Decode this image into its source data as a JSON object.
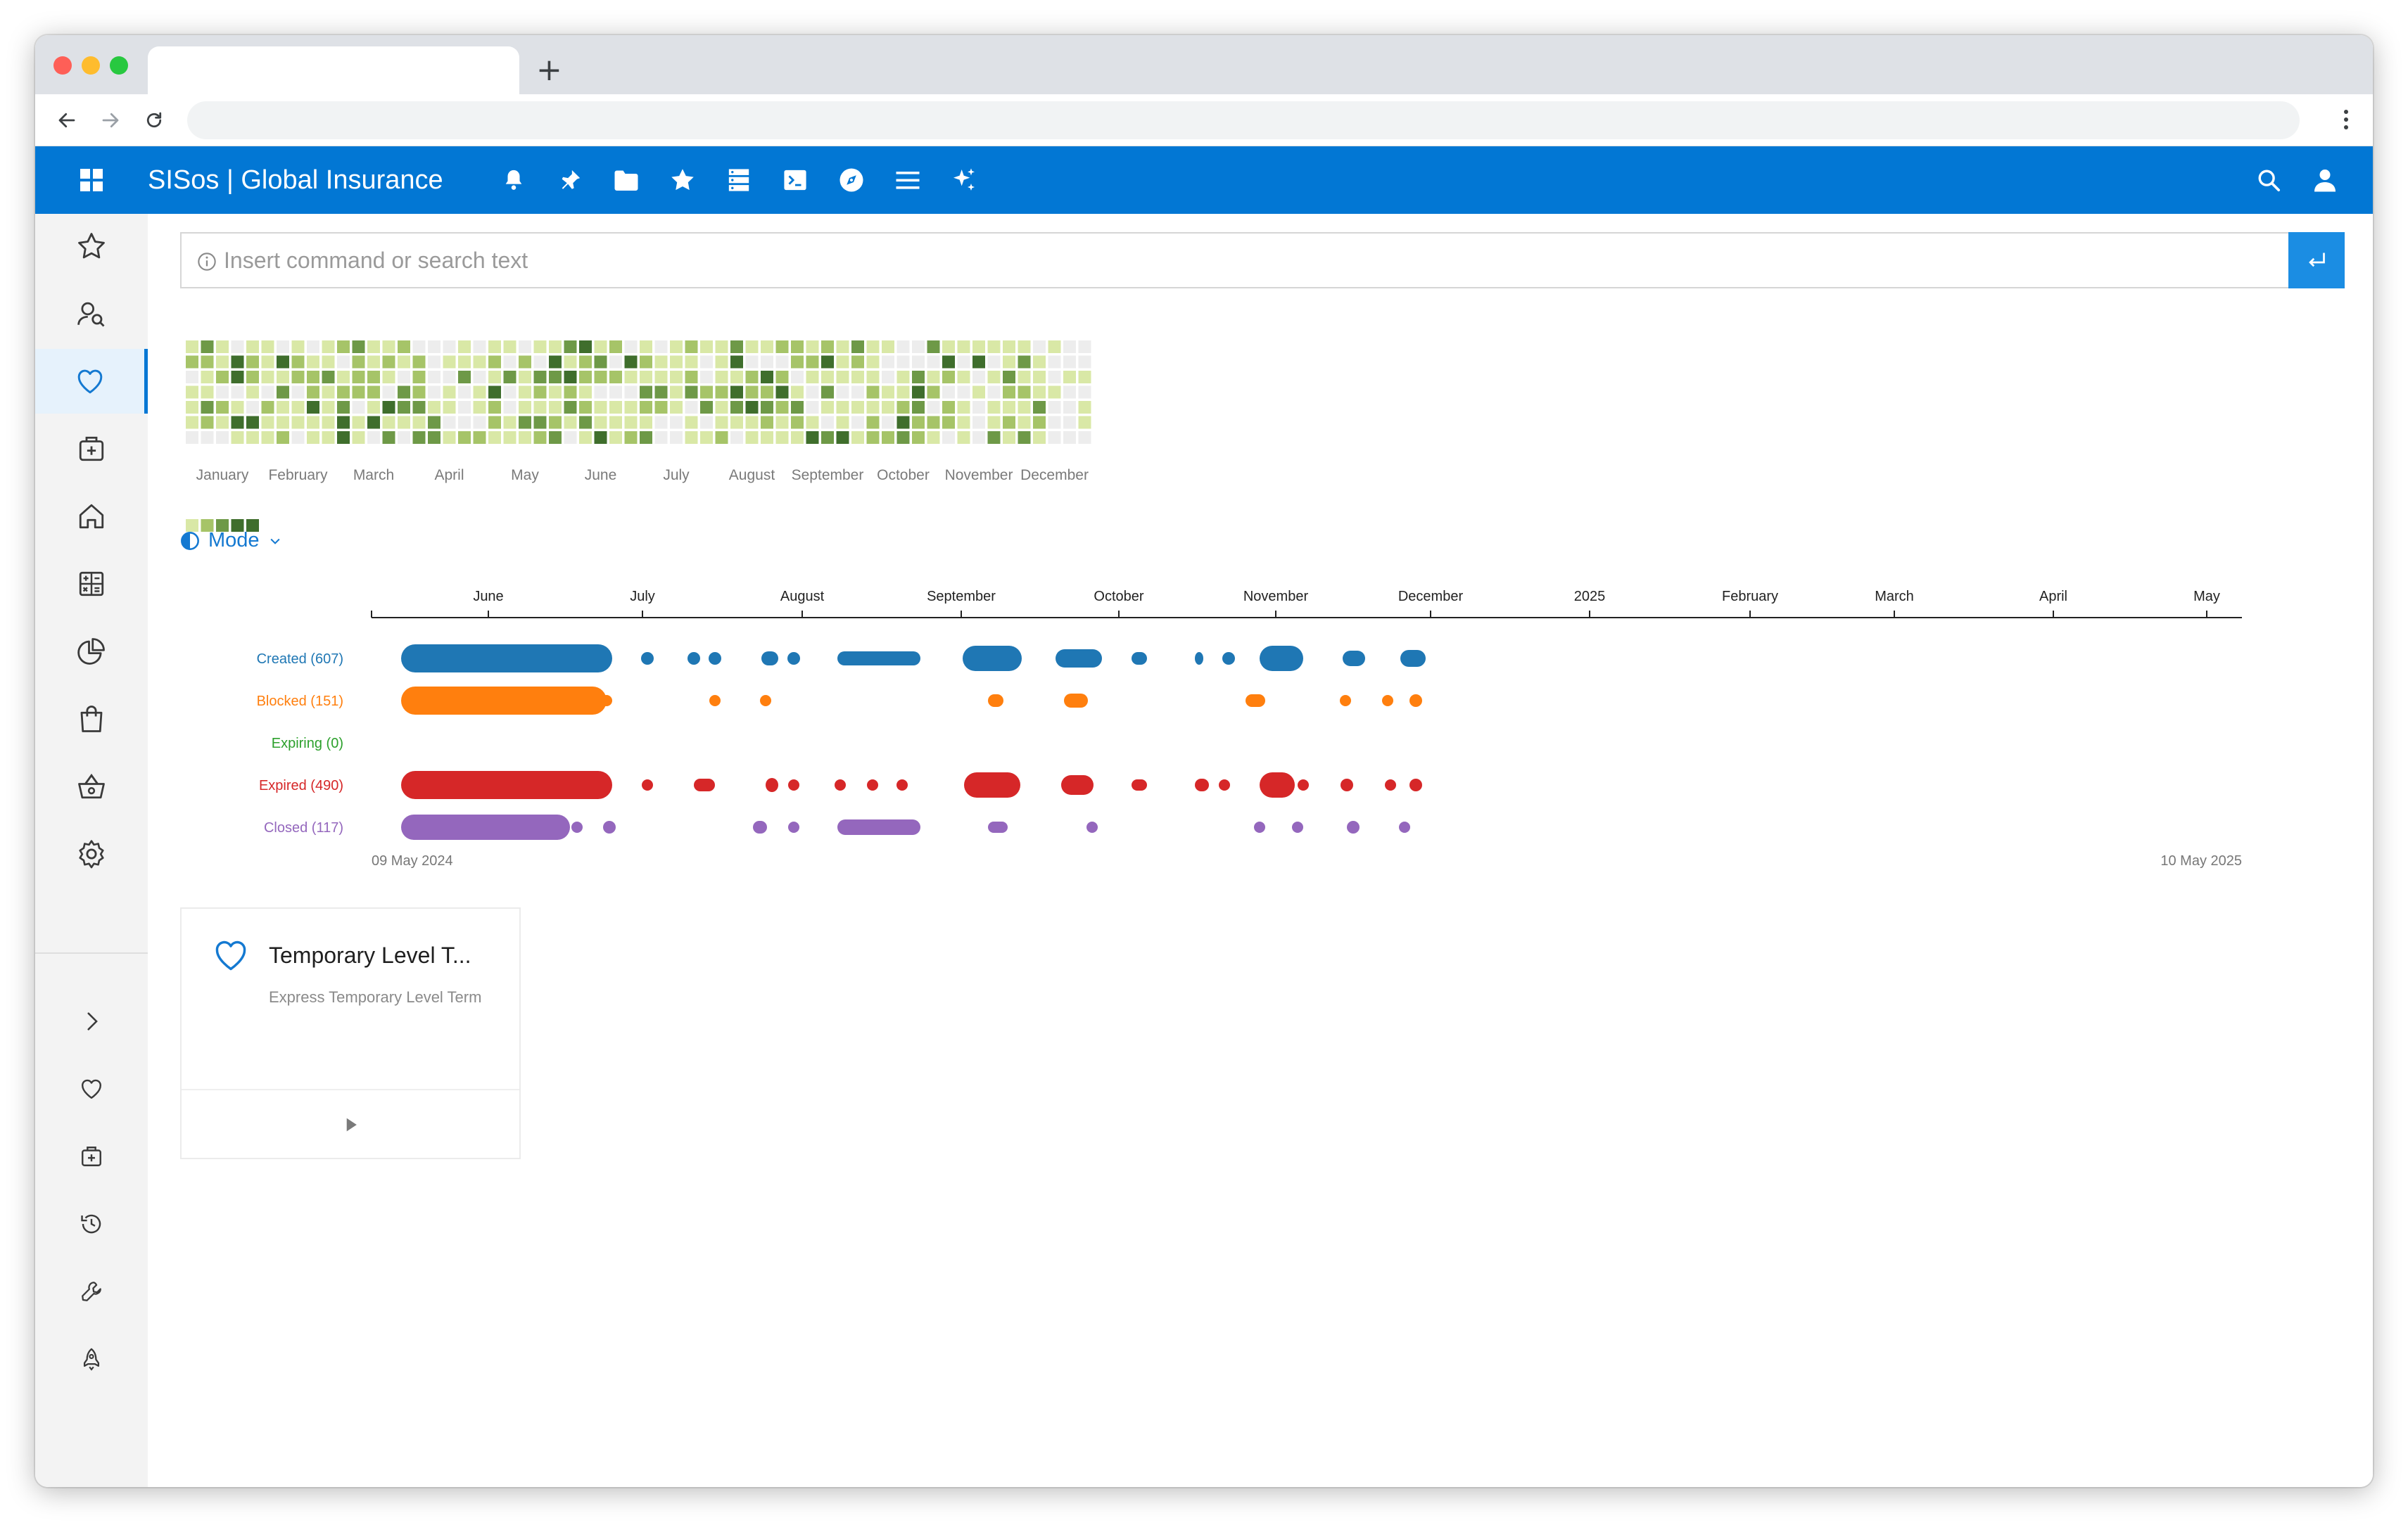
{
  "browser": {
    "tab_title": "",
    "url": "",
    "new_tab_symbol": "+"
  },
  "appbar": {
    "title": "SISos | Global Insurance",
    "icons": [
      "apps-grid-icon",
      "bell-icon",
      "pin-icon",
      "folder-icon",
      "star-icon",
      "database-icon",
      "terminal-icon",
      "compass-icon",
      "menu-list-icon",
      "sparkle-icon",
      "search-icon",
      "user-icon"
    ]
  },
  "sidebar": {
    "top_items": [
      "favorites",
      "contacts",
      "health",
      "medical-kit",
      "home",
      "calculator",
      "reports",
      "shopping",
      "basket",
      "settings"
    ],
    "active": "health",
    "bottom_items": [
      "expand",
      "health",
      "medical-kit",
      "history",
      "tools",
      "rocket"
    ]
  },
  "search": {
    "placeholder": "Insert command or search text"
  },
  "heatmap": {
    "months": [
      "January",
      "February",
      "March",
      "April",
      "May",
      "June",
      "July",
      "August",
      "September",
      "October",
      "November",
      "December"
    ],
    "levels": [
      0,
      1,
      2,
      3,
      4
    ],
    "colors": [
      "#ededed",
      "#d9e8a6",
      "#a6c468",
      "#6e9947",
      "#3f6e2c"
    ]
  },
  "mode": {
    "label": "Mode"
  },
  "timeline": {
    "months": [
      "June",
      "July",
      "August",
      "September",
      "October",
      "November",
      "December",
      "2025",
      "February",
      "March",
      "April",
      "May"
    ],
    "start_label": "09 May 2024",
    "end_label": "10 May 2025",
    "rows": [
      {
        "label": "Created (607)",
        "color": "#1f77b4"
      },
      {
        "label": "Blocked (151)",
        "color": "#ff7f0e"
      },
      {
        "label": "Expiring (0)",
        "color": "#2ca02c"
      },
      {
        "label": "Expired (490)",
        "color": "#d62728"
      },
      {
        "label": "Closed (117)",
        "color": "#9467bd"
      }
    ]
  },
  "card": {
    "title": "Temporary Level T...",
    "subtitle": "Express Temporary Level Term"
  }
}
